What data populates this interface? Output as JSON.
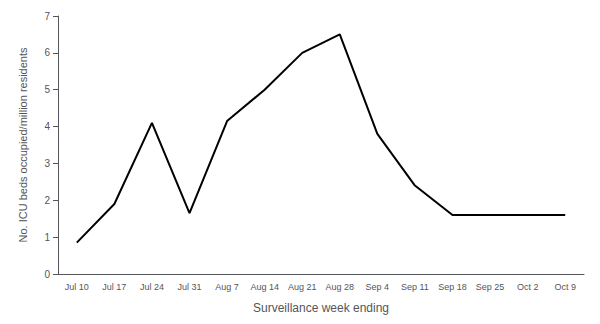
{
  "chart_data": {
    "type": "line",
    "categories": [
      "Jul 10",
      "Jul 17",
      "Jul 24",
      "Jul 31",
      "Aug 7",
      "Aug 14",
      "Aug 21",
      "Aug 28",
      "Sep 4",
      "Sep 11",
      "Sep 18",
      "Sep 25",
      "Oct 2",
      "Oct 9"
    ],
    "values": [
      0.85,
      1.9,
      4.1,
      1.65,
      4.15,
      5.0,
      6.0,
      6.5,
      3.8,
      2.4,
      1.6,
      1.6,
      1.6,
      1.6
    ],
    "xlabel": "Surveillance week ending",
    "ylabel": "No. ICU beds occupied/million residents",
    "ylim": [
      0,
      7
    ],
    "yticks": [
      0,
      1,
      2,
      3,
      4,
      5,
      6,
      7
    ],
    "color": "#000000",
    "grid": false
  }
}
